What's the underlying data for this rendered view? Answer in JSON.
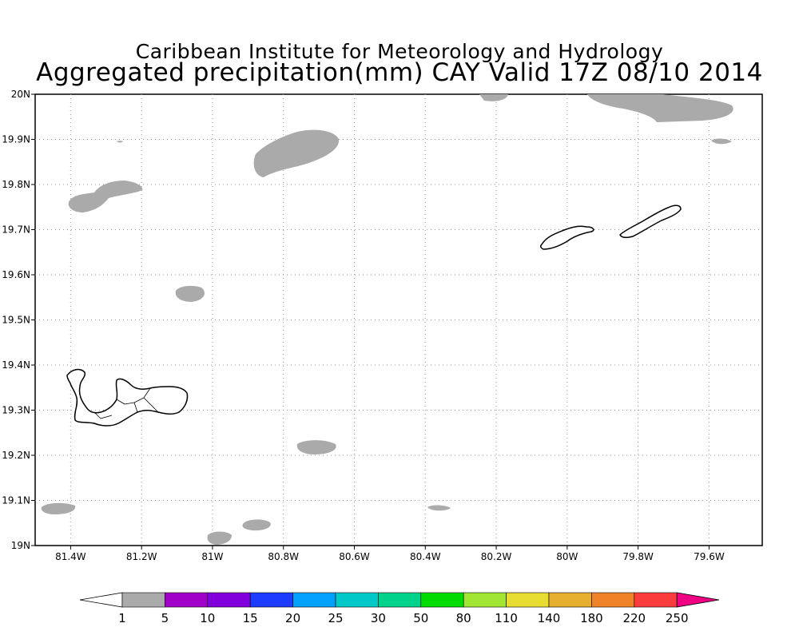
{
  "header": {
    "institute": "Caribbean Institute for Meteorology and Hydrology",
    "product": "Aggregated precipitation(mm) CAY Valid 17Z 08/10 2014"
  },
  "map": {
    "lon_range": [
      -81.5,
      -79.45
    ],
    "lat_range": [
      19.0,
      20.0
    ],
    "grid": true,
    "lon_ticks": [
      "81.4W",
      "81.2W",
      "81W",
      "80.8W",
      "80.6W",
      "80.4W",
      "80.2W",
      "80W",
      "79.8W",
      "79.6W"
    ],
    "lat_ticks": [
      "19N",
      "19.1N",
      "19.2N",
      "19.3N",
      "19.4N",
      "19.5N",
      "19.6N",
      "19.7N",
      "19.8N",
      "19.9N",
      "20N"
    ],
    "precip_color": "#aaaaaa",
    "islands": [
      "Grand Cayman",
      "Little Cayman",
      "Cayman Brac"
    ]
  },
  "colorbar": {
    "labels": [
      "1",
      "5",
      "10",
      "15",
      "20",
      "25",
      "30",
      "50",
      "80",
      "110",
      "140",
      "180",
      "220",
      "250"
    ],
    "colors": [
      "#aaaaaa",
      "#a000c8",
      "#8200dc",
      "#1e3cff",
      "#00a0ff",
      "#00c8c8",
      "#00d28c",
      "#00dc00",
      "#a0e632",
      "#e6dc32",
      "#e6af2d",
      "#f08228",
      "#fa3c3c"
    ],
    "low_color": "#ffffff",
    "high_color": "#f00082"
  }
}
